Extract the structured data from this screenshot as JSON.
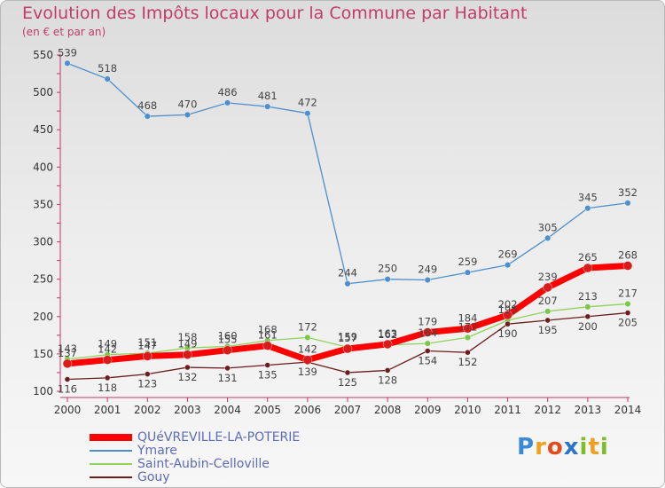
{
  "title": "Evolution des Impôts locaux pour la Commune par Habitant",
  "subtitle": "(en € et par an)",
  "logo_text": "Proxiti",
  "chart_data": {
    "type": "line",
    "x": [
      2000,
      2001,
      2002,
      2003,
      2004,
      2005,
      2006,
      2007,
      2008,
      2009,
      2010,
      2011,
      2012,
      2013,
      2014
    ],
    "ylim": [
      100,
      550
    ],
    "yticks": [
      100,
      150,
      200,
      250,
      300,
      350,
      400,
      450,
      500,
      550
    ],
    "grid": false,
    "legend_position": "bottom-left",
    "series": [
      {
        "name": "Ymare",
        "color": "#4d8fcc",
        "values": [
          539,
          518,
          468,
          470,
          486,
          481,
          472,
          244,
          250,
          249,
          259,
          269,
          305,
          345,
          352
        ]
      },
      {
        "name": "Saint-Aubin-Celloville",
        "color": "#8fd35a",
        "values": [
          143,
          149,
          151,
          158,
          160,
          168,
          172,
          159,
          162,
          164,
          172,
          195,
          207,
          213,
          217
        ]
      },
      {
        "name": "Gouy",
        "color": "#6b1c1c",
        "values": [
          116,
          118,
          123,
          132,
          131,
          135,
          139,
          125,
          128,
          154,
          152,
          190,
          195,
          200,
          205
        ]
      },
      {
        "name": "QUéVREVILLE-LA-POTERIE",
        "color": "#ff0000",
        "values": [
          137,
          142,
          147,
          149,
          155,
          161,
          142,
          157,
          163,
          179,
          184,
          202,
          239,
          265,
          268
        ]
      }
    ],
    "labels": {
      "Ymare": [
        "539",
        "518",
        "468",
        "470",
        "486",
        "481",
        "472",
        "244",
        "250",
        "249",
        "259",
        "269",
        "305",
        "345",
        "352"
      ],
      "Saint-Aubin-Celloville": [
        "143",
        "149",
        "151",
        "158",
        "160",
        "168",
        "172",
        "159",
        "162",
        "164",
        "172",
        "195",
        "207",
        "213",
        "217"
      ],
      "Gouy": [
        "116",
        "118",
        "123",
        "132",
        "131",
        "135",
        "139",
        "125",
        "128",
        "154",
        "152",
        "190",
        "195",
        "200",
        "205"
      ],
      "QUéVREVILLE-LA-POTERIE": [
        "137",
        "142",
        "147",
        "149",
        "155",
        "161",
        "142",
        "157",
        "163",
        "179",
        "184",
        "202",
        "239",
        "265",
        "268"
      ]
    }
  },
  "legend": [
    {
      "label": "QUéVREVILLE-LA-POTERIE",
      "color": "#ff0000"
    },
    {
      "label": "Ymare",
      "color": "#4d8fcc"
    },
    {
      "label": "Saint-Aubin-Celloville",
      "color": "#8fd35a"
    },
    {
      "label": "Gouy",
      "color": "#6b1c1c"
    }
  ]
}
